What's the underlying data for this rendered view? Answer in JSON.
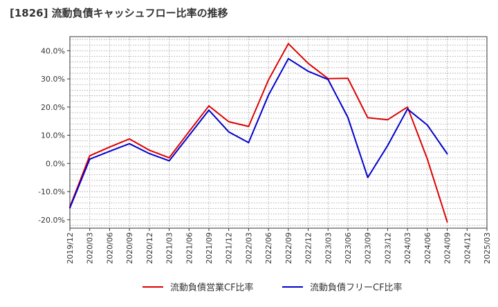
{
  "title": "[1826]  流動負債キャッシュフロー比率の推移",
  "chart_data": {
    "type": "line",
    "title": "[1826]  流動負債キャッシュフロー比率の推移",
    "x": [
      "2019/12",
      "2020/03",
      "2020/06",
      "2020/09",
      "2020/12",
      "2021/03",
      "2021/06",
      "2021/09",
      "2021/12",
      "2022/03",
      "2022/06",
      "2022/09",
      "2022/12",
      "2023/03",
      "2023/06",
      "2023/09",
      "2023/12",
      "2024/03",
      "2024/06",
      "2024/09",
      "2024/12",
      "2025/03"
    ],
    "ylim": [
      -23,
      45
    ],
    "yticks": [
      -20,
      -10,
      0,
      10,
      20,
      30,
      40
    ],
    "ytick_labels": [
      "-20.0%",
      "-10.0%",
      "0.0%",
      "10.0%",
      "20.0%",
      "30.0%",
      "40.0%"
    ],
    "grid": true,
    "legend_position": "bottom",
    "series": [
      {
        "name": "流動負債営業CF比率",
        "color": "#dd0000",
        "values": [
          -15.5,
          2.7,
          5.8,
          8.7,
          4.7,
          2.0,
          11.3,
          20.4,
          14.8,
          13.1,
          29.6,
          42.5,
          35.5,
          30.1,
          30.2,
          16.2,
          15.5,
          20.0,
          1.5,
          -20.8,
          null,
          null
        ]
      },
      {
        "name": "流動負債フリーCF比率",
        "color": "#0000cc",
        "values": [
          -15.8,
          1.5,
          4.3,
          7.0,
          3.5,
          0.9,
          9.9,
          18.9,
          11.2,
          7.4,
          24.2,
          37.2,
          32.7,
          29.8,
          16.3,
          -5.0,
          6.3,
          19.3,
          13.6,
          3.4,
          null,
          null
        ]
      }
    ]
  }
}
